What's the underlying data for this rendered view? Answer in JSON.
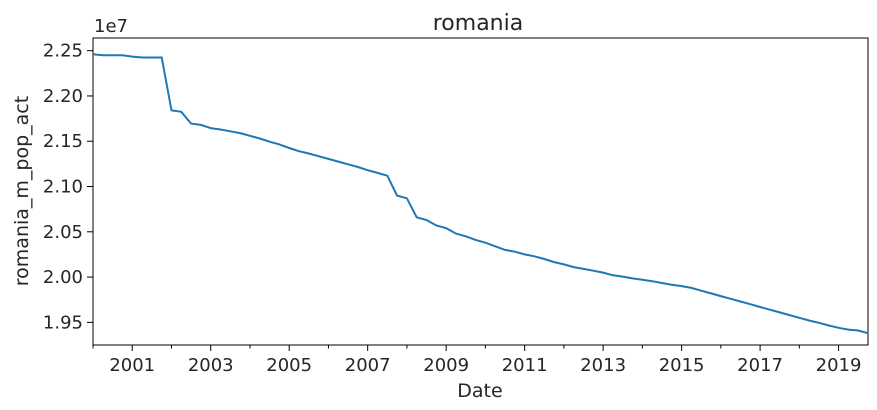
{
  "chart_data": {
    "type": "line",
    "title": "romania",
    "xlabel": "Date",
    "ylabel": "romania_m_pop_act",
    "y_offset_label": "1e7",
    "y_scale": 10000000,
    "x_ticks": [
      "2001",
      "2003",
      "2005",
      "2007",
      "2009",
      "2011",
      "2013",
      "2015",
      "2017",
      "2019"
    ],
    "y_ticks": [
      "1.95",
      "2.00",
      "2.05",
      "2.10",
      "2.15",
      "2.20",
      "2.25"
    ],
    "xlim": [
      "2000-01",
      "2019-10"
    ],
    "ylim": [
      19250000,
      22640000
    ],
    "grid": false,
    "line_color": "#1f77b4",
    "series": [
      {
        "x": [
          "2000-01",
          "2000-04",
          "2000-07",
          "2000-10",
          "2001-01",
          "2001-04",
          "2001-07",
          "2001-10",
          "2002-01",
          "2002-04",
          "2002-07",
          "2002-10",
          "2003-01",
          "2003-04",
          "2003-07",
          "2003-10",
          "2004-01",
          "2004-04",
          "2004-07",
          "2004-10",
          "2005-01",
          "2005-04",
          "2005-07",
          "2005-10",
          "2006-01",
          "2006-04",
          "2006-07",
          "2006-10",
          "2007-01",
          "2007-04",
          "2007-07",
          "2007-10",
          "2008-01",
          "2008-04",
          "2008-07",
          "2008-10",
          "2009-01",
          "2009-04",
          "2009-07",
          "2009-10",
          "2010-01",
          "2010-04",
          "2010-07",
          "2010-10",
          "2011-01",
          "2011-04",
          "2011-07",
          "2011-10",
          "2012-01",
          "2012-04",
          "2012-07",
          "2012-10",
          "2013-01",
          "2013-04",
          "2013-07",
          "2013-10",
          "2014-01",
          "2014-04",
          "2014-07",
          "2014-10",
          "2015-01",
          "2015-04",
          "2015-07",
          "2015-10",
          "2016-01",
          "2016-04",
          "2016-07",
          "2016-10",
          "2017-01",
          "2017-04",
          "2017-07",
          "2017-10",
          "2018-01",
          "2018-04",
          "2018-07",
          "2018-10",
          "2019-01",
          "2019-04",
          "2019-07",
          "2019-10"
        ],
        "y": [
          22460000,
          22450000,
          22450000,
          22450000,
          22435000,
          22425000,
          22425000,
          22425000,
          21840000,
          21825000,
          21695000,
          21680000,
          21645000,
          21630000,
          21610000,
          21590000,
          21560000,
          21530000,
          21495000,
          21465000,
          21425000,
          21390000,
          21365000,
          21335000,
          21305000,
          21275000,
          21245000,
          21215000,
          21180000,
          21150000,
          21120000,
          20900000,
          20870000,
          20660000,
          20630000,
          20570000,
          20540000,
          20480000,
          20450000,
          20410000,
          20380000,
          20340000,
          20300000,
          20280000,
          20250000,
          20230000,
          20200000,
          20165000,
          20140000,
          20110000,
          20090000,
          20070000,
          20050000,
          20020000,
          20005000,
          19985000,
          19970000,
          19955000,
          19935000,
          19915000,
          19900000,
          19880000,
          19850000,
          19820000,
          19790000,
          19760000,
          19730000,
          19700000,
          19670000,
          19640000,
          19610000,
          19580000,
          19550000,
          19520000,
          19495000,
          19465000,
          19440000,
          19420000,
          19410000,
          19380000
        ]
      }
    ]
  }
}
